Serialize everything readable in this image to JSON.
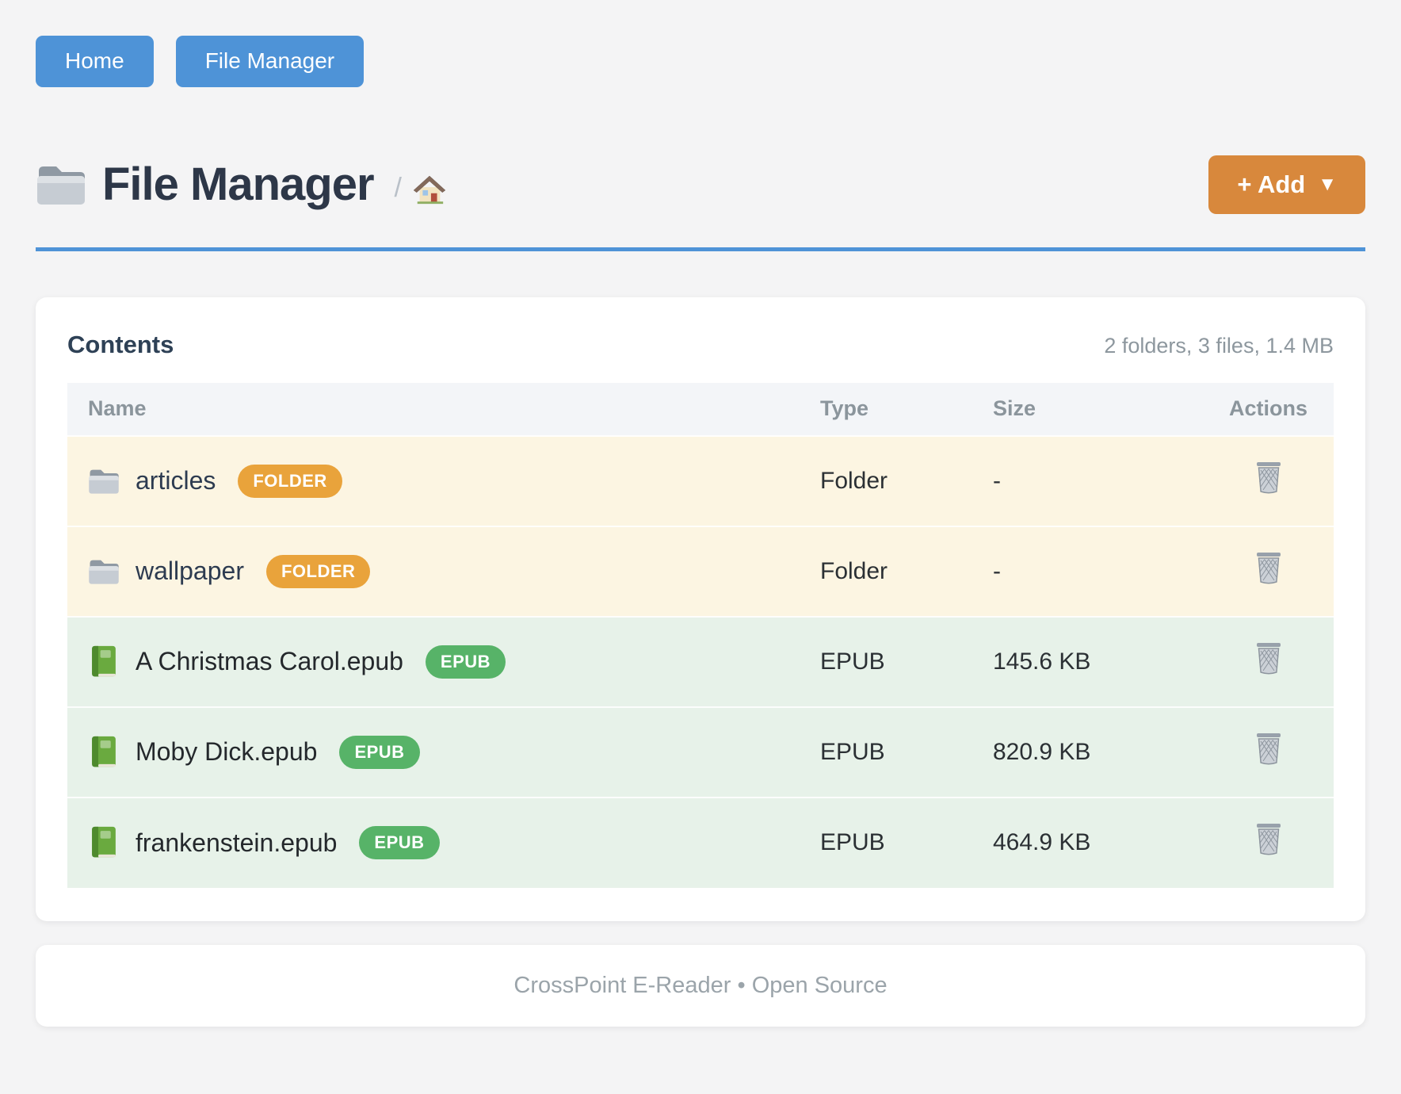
{
  "nav": {
    "buttons": [
      {
        "label": "Home"
      },
      {
        "label": "File Manager"
      }
    ]
  },
  "header": {
    "title": "File Manager",
    "title_icon": "folder-icon",
    "breadcrumb_separator": "/",
    "breadcrumb_home_icon": "house-icon",
    "add_button_label": "+ Add",
    "add_button_caret": "▼"
  },
  "panel": {
    "heading": "Contents",
    "summary": "2 folders, 3 files, 1.4 MB",
    "table": {
      "columns": [
        "Name",
        "Type",
        "Size",
        "Actions"
      ],
      "rows": [
        {
          "name": "articles",
          "badge": "FOLDER",
          "kind": "folder",
          "type": "Folder",
          "size": "-",
          "icon": "folder-icon",
          "action_icon": "trash-icon"
        },
        {
          "name": "wallpaper",
          "badge": "FOLDER",
          "kind": "folder",
          "type": "Folder",
          "size": "-",
          "icon": "folder-icon",
          "action_icon": "trash-icon"
        },
        {
          "name": "A Christmas Carol.epub",
          "badge": "EPUB",
          "kind": "epub",
          "type": "EPUB",
          "size": "145.6 KB",
          "icon": "book-icon",
          "action_icon": "trash-icon"
        },
        {
          "name": "Moby Dick.epub",
          "badge": "EPUB",
          "kind": "epub",
          "type": "EPUB",
          "size": "820.9 KB",
          "icon": "book-icon",
          "action_icon": "trash-icon"
        },
        {
          "name": "frankenstein.epub",
          "badge": "EPUB",
          "kind": "epub",
          "type": "EPUB",
          "size": "464.9 KB",
          "icon": "book-icon",
          "action_icon": "trash-icon"
        }
      ]
    }
  },
  "footer": {
    "text": "CrossPoint E-Reader • Open Source"
  },
  "colors": {
    "page_bg": "#f4f4f5",
    "accent_blue": "#4e93d7",
    "accent_orange": "#d8883c",
    "badge_folder": "#e9a33b",
    "badge_epub": "#57b368",
    "row_folder_bg": "#fcf5e2",
    "row_epub_bg": "#e7f2e9",
    "title_color": "#2d3748",
    "heading_color": "#2e4156",
    "muted": "#8d979e"
  }
}
